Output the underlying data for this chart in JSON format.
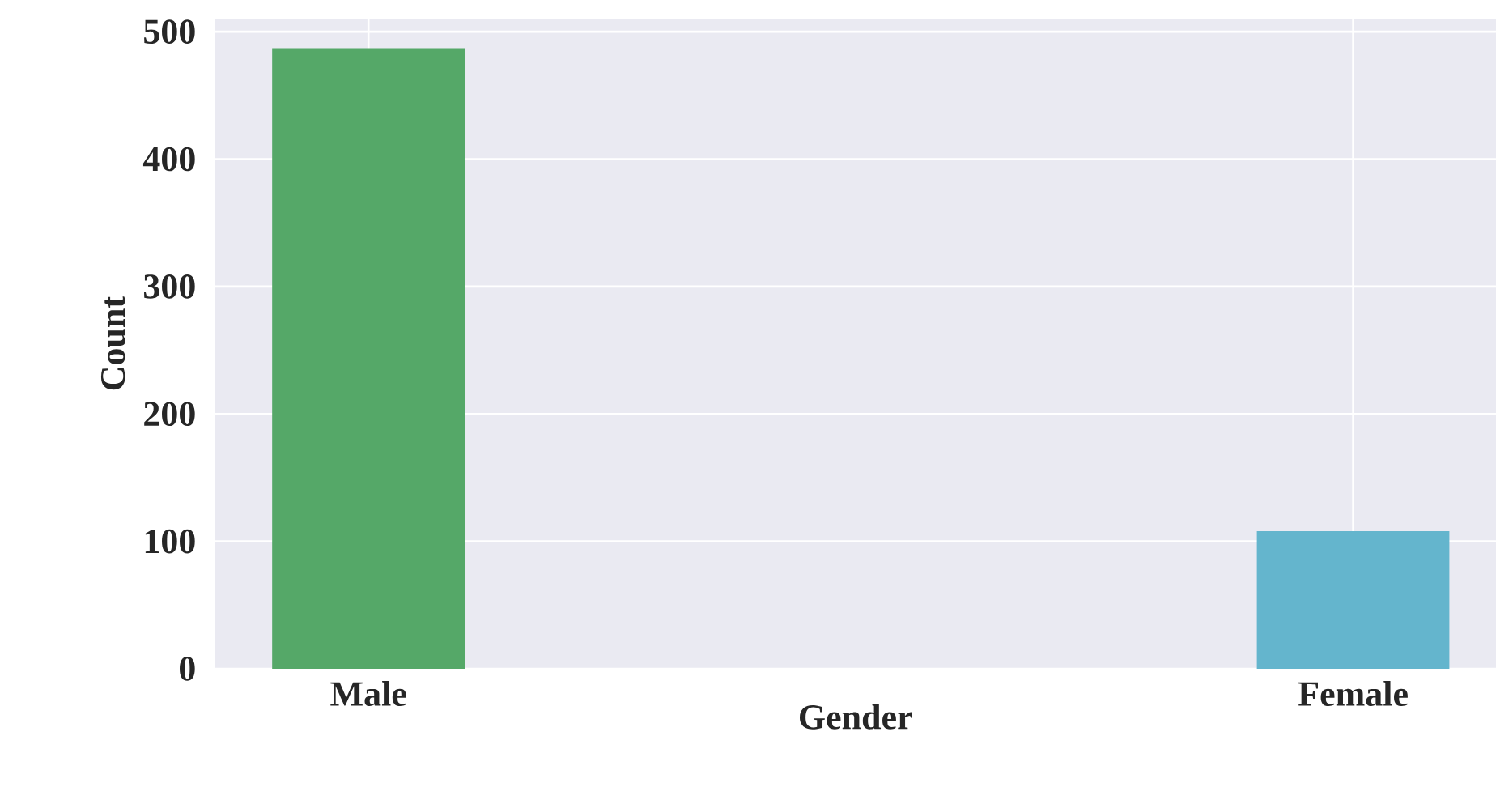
{
  "chart_data": {
    "type": "bar",
    "xlabel": "Gender",
    "ylabel": "Count",
    "categories": [
      "Male",
      "Female"
    ],
    "values": [
      487,
      108
    ],
    "colors": [
      "#55a868",
      "#64b5cd"
    ],
    "ylim": [
      0,
      510
    ],
    "yticks": [
      0,
      100,
      200,
      300,
      400,
      500
    ],
    "grid": true
  }
}
